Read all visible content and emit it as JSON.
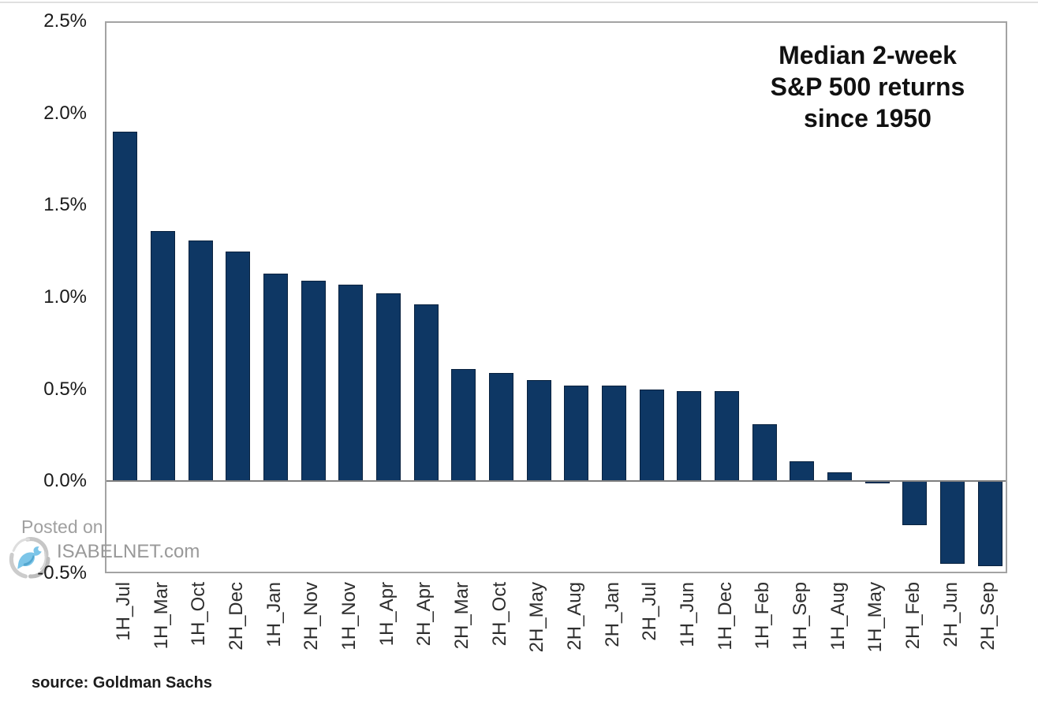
{
  "page": {
    "background": "#ffffff"
  },
  "header": {
    "title_lines": [
      "Median 2-week",
      "S&P 500 returns",
      "since 1950"
    ]
  },
  "watermark": {
    "posted_on": "Posted on",
    "site": "ISABELNET.com",
    "logo_icon": "isabelnet-swirl-bird-logo"
  },
  "footer": {
    "source": "source: Goldman Sachs"
  },
  "chart_data": {
    "type": "bar",
    "title": "Median 2-week S&P 500 returns since 1950",
    "xlabel": "",
    "ylabel": "",
    "unit": "%",
    "grid": false,
    "legend_position": "none",
    "ylim": [
      -0.5,
      2.5
    ],
    "yticks": [
      2.5,
      2.0,
      1.5,
      1.0,
      0.5,
      0.0,
      -0.5
    ],
    "ytick_labels": [
      "2.5%",
      "2.0%",
      "1.5%",
      "1.0%",
      "0.5%",
      "0.0%",
      "-0.5%"
    ],
    "categories": [
      "1H_Jul",
      "1H_Mar",
      "1H_Oct",
      "2H_Dec",
      "1H_Jan",
      "2H_Nov",
      "1H_Nov",
      "1H_Apr",
      "2H_Apr",
      "2H_Mar",
      "2H_Oct",
      "2H_May",
      "2H_Aug",
      "2H_Jan",
      "2H_Jul",
      "1H_Jun",
      "1H_Dec",
      "1H_Feb",
      "1H_Sep",
      "1H_Aug",
      "1H_May",
      "2H_Feb",
      "2H_Jun",
      "2H_Sep"
    ],
    "values": [
      1.9,
      1.36,
      1.31,
      1.25,
      1.13,
      1.09,
      1.07,
      1.02,
      0.96,
      0.61,
      0.59,
      0.55,
      0.52,
      0.52,
      0.5,
      0.49,
      0.49,
      0.31,
      0.11,
      0.05,
      -0.01,
      -0.24,
      -0.45,
      -0.46
    ],
    "bar_color": "#0e3764",
    "bar_border_color": "#09223f",
    "axis_border_color": "#a3a3a3",
    "zero_line_color": "#7f7f7f"
  }
}
